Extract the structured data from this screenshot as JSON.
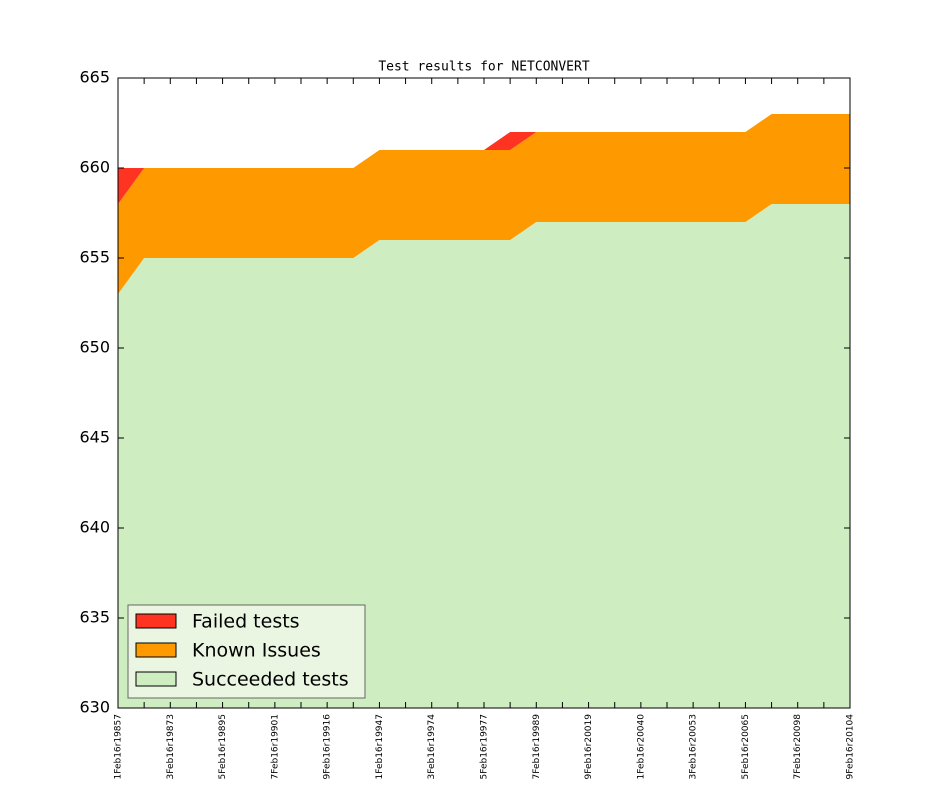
{
  "chart_data": {
    "type": "stacked-area",
    "title": "Test results for NETCONVERT",
    "categories": [
      "1Feb16r19857",
      null,
      "3Feb16r19873",
      null,
      "5Feb16r19895",
      null,
      "7Feb16r19901",
      null,
      "9Feb16r19916",
      null,
      "1Feb16r19947",
      null,
      "3Feb16r19974",
      null,
      "5Feb16r19977",
      null,
      "7Feb16r19989",
      null,
      "9Feb16r20019",
      null,
      "1Feb16r20040",
      null,
      "3Feb16r20053",
      null,
      "5Feb16r20065",
      null,
      "7Feb16r20098",
      null,
      "9Feb16r20104"
    ],
    "series": [
      {
        "name": "Failed tests",
        "color": "#ff3322",
        "values": [
          2,
          0,
          0,
          0,
          0,
          0,
          0,
          0,
          0,
          0,
          0,
          0,
          0,
          0,
          0,
          1,
          0,
          0,
          0,
          0,
          0,
          0,
          0,
          0,
          0,
          0,
          0,
          0,
          0
        ]
      },
      {
        "name": "Known Issues",
        "color": "#ff9900",
        "values": [
          5,
          5,
          5,
          5,
          5,
          5,
          5,
          5,
          5,
          5,
          5,
          5,
          5,
          5,
          5,
          5,
          5,
          5,
          5,
          5,
          5,
          5,
          5,
          5,
          5,
          5,
          5,
          5,
          5
        ]
      },
      {
        "name": "Succeeded tests",
        "color": "#ceedc0",
        "values": [
          653,
          655,
          655,
          655,
          655,
          655,
          655,
          655,
          655,
          655,
          656,
          656,
          656,
          656,
          656,
          656,
          657,
          657,
          657,
          657,
          657,
          657,
          657,
          657,
          657,
          658,
          658,
          658,
          658
        ]
      }
    ],
    "ylim": [
      630,
      665
    ],
    "yticks": [
      630,
      635,
      640,
      645,
      650,
      655,
      660,
      665
    ],
    "legend": "lower left"
  }
}
